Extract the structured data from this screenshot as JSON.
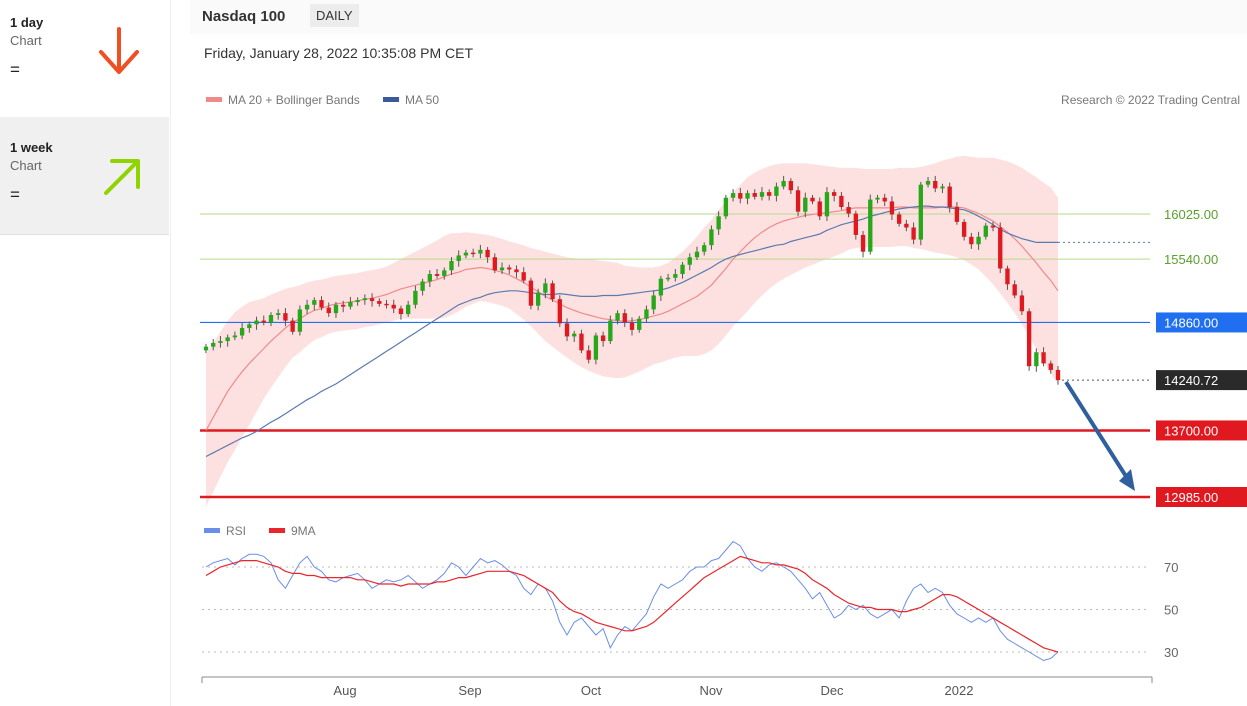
{
  "sidebar": {
    "items": [
      {
        "period": "1 day",
        "sub": "Chart",
        "signal": "=",
        "arrow": "down",
        "color": "#f04e23"
      },
      {
        "period": "1 week",
        "sub": "Chart",
        "signal": "=",
        "arrow": "up",
        "color": "#8fd400"
      }
    ]
  },
  "header": {
    "symbol": "Nasdaq 100",
    "frequency": "DAILY"
  },
  "datetime": "Friday, January 28, 2022 10:35:08 PM CET",
  "legend": {
    "ma20": "MA 20 + Bollinger Bands",
    "ma50": "MA 50",
    "rsi": "RSI",
    "ma9": "9MA"
  },
  "copyright": "Research © 2022 Trading Central",
  "colors": {
    "green": "#26a81a",
    "red": "#e0181f",
    "blue_level": "#1f6ff0",
    "last": "#2a2a2a",
    "band": "#fcd9d9",
    "ma20": "#f08a8a",
    "ma50": "#5a7ab0",
    "forecast": "#2f5f9e"
  },
  "chart_data": [
    {
      "type": "candlestick",
      "x_labels": [
        "Aug",
        "Sep",
        "Oct",
        "Nov",
        "Dec",
        "2022"
      ],
      "ylim": [
        12800,
        17000
      ],
      "levels": [
        {
          "value": 16025,
          "label": "16025.00",
          "style": "resistance-green"
        },
        {
          "value": 15540,
          "label": "15540.00",
          "style": "resistance-green"
        },
        {
          "value": 14860,
          "label": "14860.00",
          "style": "pivot-blue"
        },
        {
          "value": 13700,
          "label": "13700.00",
          "style": "support-red"
        },
        {
          "value": 12985,
          "label": "12985.00",
          "style": "support-red"
        }
      ],
      "last_price": {
        "value": 14240.72,
        "label": "14240.72"
      },
      "closes": [
        14600,
        14640,
        14660,
        14700,
        14720,
        14800,
        14840,
        14880,
        14860,
        14940,
        14960,
        14880,
        14760,
        15000,
        15050,
        15100,
        15020,
        14960,
        15050,
        15030,
        15080,
        15100,
        15120,
        15090,
        15060,
        15050,
        15010,
        14950,
        15050,
        15200,
        15300,
        15380,
        15360,
        15420,
        15520,
        15580,
        15610,
        15600,
        15640,
        15560,
        15420,
        15450,
        15430,
        15400,
        15310,
        15040,
        15180,
        15280,
        15110,
        14850,
        14710,
        14740,
        14560,
        14460,
        14720,
        14660,
        14880,
        14960,
        14860,
        14780,
        14900,
        15000,
        15150,
        15330,
        15340,
        15380,
        15480,
        15560,
        15620,
        15690,
        15860,
        16000,
        16200,
        16250,
        16190,
        16250,
        16210,
        16260,
        16220,
        16320,
        16380,
        16280,
        16050,
        16200,
        16160,
        16000,
        16260,
        16220,
        16100,
        16030,
        15800,
        15620,
        16180,
        16200,
        16160,
        16020,
        15920,
        15880,
        15750,
        16340,
        16380,
        16300,
        16320,
        16100,
        15940,
        15780,
        15700,
        15780,
        15900,
        15880,
        15440,
        15270,
        15150,
        14980,
        14390,
        14540,
        14420,
        14350,
        14240.72
      ],
      "ma20": [
        13700,
        13840,
        13980,
        14120,
        14230,
        14330,
        14420,
        14500,
        14580,
        14660,
        14730,
        14800,
        14860,
        14900,
        14950,
        14990,
        15010,
        15040,
        15060,
        15070,
        15080,
        15090,
        15110,
        15120,
        15140,
        15160,
        15190,
        15220,
        15240,
        15260,
        15280,
        15300,
        15320,
        15350,
        15380,
        15400,
        15430,
        15440,
        15450,
        15440,
        15420,
        15400,
        15370,
        15330,
        15290,
        15240,
        15190,
        15140,
        15100,
        15060,
        15020,
        14990,
        14960,
        14940,
        14920,
        14900,
        14890,
        14880,
        14870,
        14880,
        14890,
        14910,
        14930,
        14950,
        14980,
        15020,
        15060,
        15100,
        15140,
        15200,
        15260,
        15350,
        15440,
        15540,
        15620,
        15700,
        15770,
        15830,
        15880,
        15920,
        15950,
        15970,
        15990,
        16010,
        16020,
        16030,
        16040,
        16050,
        16060,
        16080,
        16090,
        16090,
        16090,
        16090,
        16090,
        16090,
        16100,
        16100,
        16090,
        16090,
        16090,
        16090,
        16100,
        16100,
        16100,
        16090,
        16060,
        16030,
        15990,
        15950,
        15890,
        15830,
        15760,
        15680,
        15590,
        15500,
        15400,
        15310,
        15200
      ],
      "ma50": [
        13420,
        13460,
        13500,
        13540,
        13580,
        13620,
        13650,
        13690,
        13740,
        13790,
        13830,
        13880,
        13930,
        13980,
        14030,
        14070,
        14120,
        14160,
        14200,
        14250,
        14300,
        14350,
        14400,
        14450,
        14500,
        14550,
        14600,
        14650,
        14700,
        14750,
        14800,
        14850,
        14900,
        14950,
        15000,
        15050,
        15080,
        15110,
        15130,
        15160,
        15180,
        15190,
        15200,
        15200,
        15190,
        15180,
        15170,
        15160,
        15160,
        15170,
        15160,
        15150,
        15140,
        15140,
        15140,
        15150,
        15150,
        15150,
        15160,
        15170,
        15180,
        15190,
        15200,
        15210,
        15230,
        15260,
        15290,
        15330,
        15370,
        15410,
        15450,
        15500,
        15540,
        15570,
        15590,
        15610,
        15630,
        15650,
        15670,
        15690,
        15700,
        15730,
        15750,
        15770,
        15790,
        15810,
        15850,
        15880,
        15910,
        15930,
        15950,
        15970,
        16000,
        16020,
        16040,
        16060,
        16080,
        16090,
        16100,
        16110,
        16110,
        16100,
        16100,
        16090,
        16080,
        16070,
        16040,
        16000,
        15960,
        15910,
        15860,
        15820,
        15790,
        15760,
        15740,
        15720,
        15720,
        15720,
        15720
      ],
      "bb_half_width": [
        820,
        800,
        780,
        760,
        740,
        700,
        660,
        600,
        540,
        500,
        460,
        420,
        380,
        360,
        340,
        320,
        310,
        300,
        300,
        300,
        300,
        300,
        300,
        300,
        300,
        300,
        310,
        320,
        340,
        360,
        380,
        400,
        420,
        440,
        440,
        420,
        400,
        380,
        360,
        360,
        360,
        360,
        360,
        380,
        400,
        420,
        450,
        480,
        500,
        520,
        540,
        560,
        580,
        600,
        610,
        620,
        620,
        620,
        600,
        580,
        560,
        540,
        520,
        520,
        520,
        540,
        560,
        600,
        640,
        680,
        700,
        720,
        720,
        720,
        720,
        720,
        700,
        680,
        660,
        640,
        620,
        600,
        580,
        560,
        540,
        520,
        500,
        480,
        460,
        440,
        430,
        420,
        420,
        420,
        420,
        420,
        420,
        420,
        430,
        440,
        460,
        480,
        500,
        520,
        540,
        560,
        580,
        600,
        640,
        680,
        720,
        760,
        800,
        840,
        880,
        920,
        960,
        1000,
        1000
      ]
    },
    {
      "type": "line",
      "x_labels": [
        "Aug",
        "Sep",
        "Oct",
        "Nov",
        "Dec",
        "2022"
      ],
      "ylim": [
        20,
        85
      ],
      "ticks": [
        "70",
        "50",
        "30"
      ],
      "series": [
        {
          "name": "RSI",
          "color": "#6b8ee8",
          "values": [
            70,
            72,
            73,
            74,
            71,
            74,
            76,
            76,
            75,
            72,
            64,
            60,
            66,
            72,
            75,
            70,
            68,
            64,
            63,
            65,
            66,
            67,
            64,
            60,
            62,
            64,
            63,
            64,
            66,
            63,
            60,
            62,
            64,
            67,
            72,
            70,
            66,
            70,
            74,
            72,
            73,
            71,
            68,
            66,
            60,
            57,
            62,
            60,
            54,
            44,
            38,
            44,
            46,
            42,
            38,
            41,
            32,
            38,
            42,
            40,
            44,
            48,
            56,
            62,
            60,
            62,
            64,
            68,
            70,
            70,
            73,
            74,
            78,
            82,
            80,
            74,
            70,
            68,
            71,
            72,
            70,
            68,
            64,
            60,
            55,
            58,
            52,
            46,
            48,
            52,
            50,
            52,
            48,
            46,
            48,
            50,
            46,
            54,
            60,
            62,
            58,
            60,
            58,
            52,
            48,
            46,
            44,
            46,
            44,
            46,
            40,
            36,
            34,
            32,
            30,
            28,
            26,
            27,
            30
          ]
        },
        {
          "name": "9MA",
          "color": "#e8262b",
          "values": [
            66,
            68,
            70,
            71,
            72,
            73,
            73,
            73,
            72,
            71,
            70,
            68,
            67,
            67,
            66,
            66,
            65,
            65,
            65,
            65,
            65,
            64,
            64,
            63,
            62,
            62,
            62,
            61,
            62,
            62,
            62,
            62,
            63,
            63,
            64,
            65,
            65,
            66,
            67,
            68,
            68,
            68,
            68,
            67,
            66,
            64,
            62,
            60,
            58,
            54,
            51,
            49,
            48,
            46,
            44,
            43,
            42,
            41,
            40,
            40,
            41,
            42,
            44,
            47,
            50,
            53,
            56,
            59,
            62,
            65,
            67,
            69,
            71,
            73,
            75,
            74,
            73,
            72,
            72,
            71,
            71,
            70,
            69,
            67,
            64,
            62,
            60,
            57,
            55,
            53,
            52,
            51,
            51,
            50,
            50,
            50,
            49,
            49,
            50,
            51,
            53,
            55,
            57,
            57,
            56,
            54,
            52,
            50,
            48,
            46,
            44,
            42,
            40,
            38,
            36,
            34,
            32,
            31,
            30
          ]
        }
      ]
    }
  ]
}
